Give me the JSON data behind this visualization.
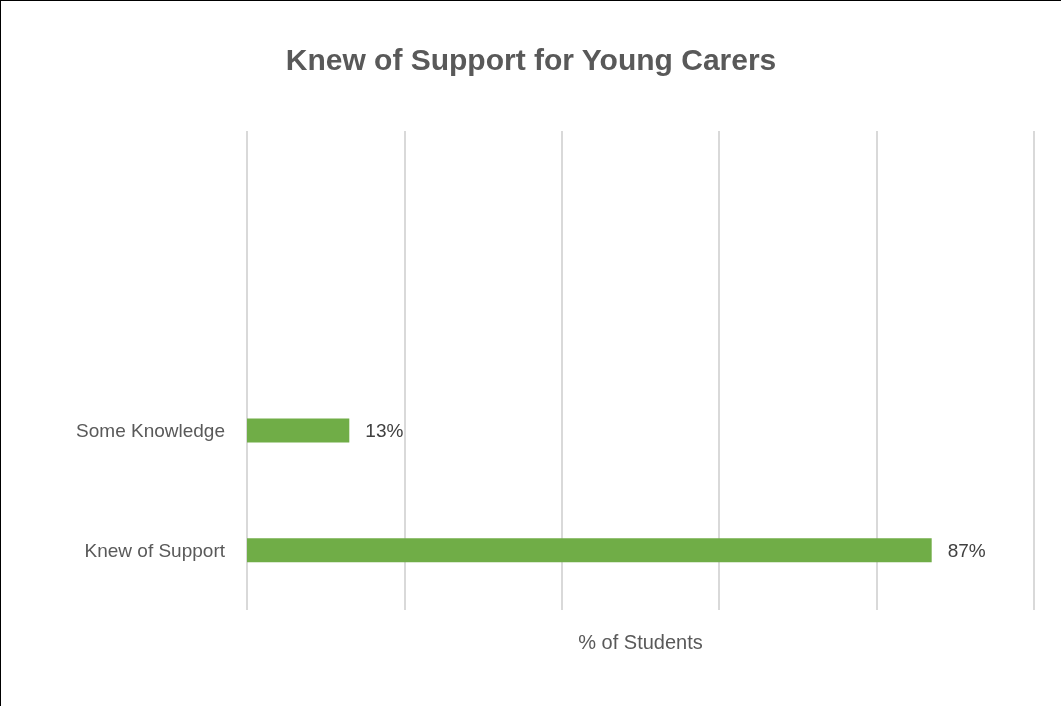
{
  "chart_data": {
    "type": "bar",
    "orientation": "horizontal",
    "title": "Knew of Support for Young Carers",
    "xlabel": "% of Students",
    "categories": [
      null,
      null,
      "Some Knowledge",
      "Knew of Support"
    ],
    "values": [
      null,
      null,
      13,
      87
    ],
    "value_labels": [
      null,
      null,
      "13%",
      "87%"
    ],
    "color": "#70ad47",
    "xlim": [
      0,
      100
    ],
    "xticks": [
      {
        "value": 0,
        "label": null
      },
      {
        "value": 20,
        "label": null
      },
      {
        "value": 40,
        "label": null
      },
      {
        "value": 60,
        "label": null
      },
      {
        "value": 80,
        "label": null
      },
      {
        "value": 100,
        "label": null
      }
    ],
    "grid": "x"
  }
}
